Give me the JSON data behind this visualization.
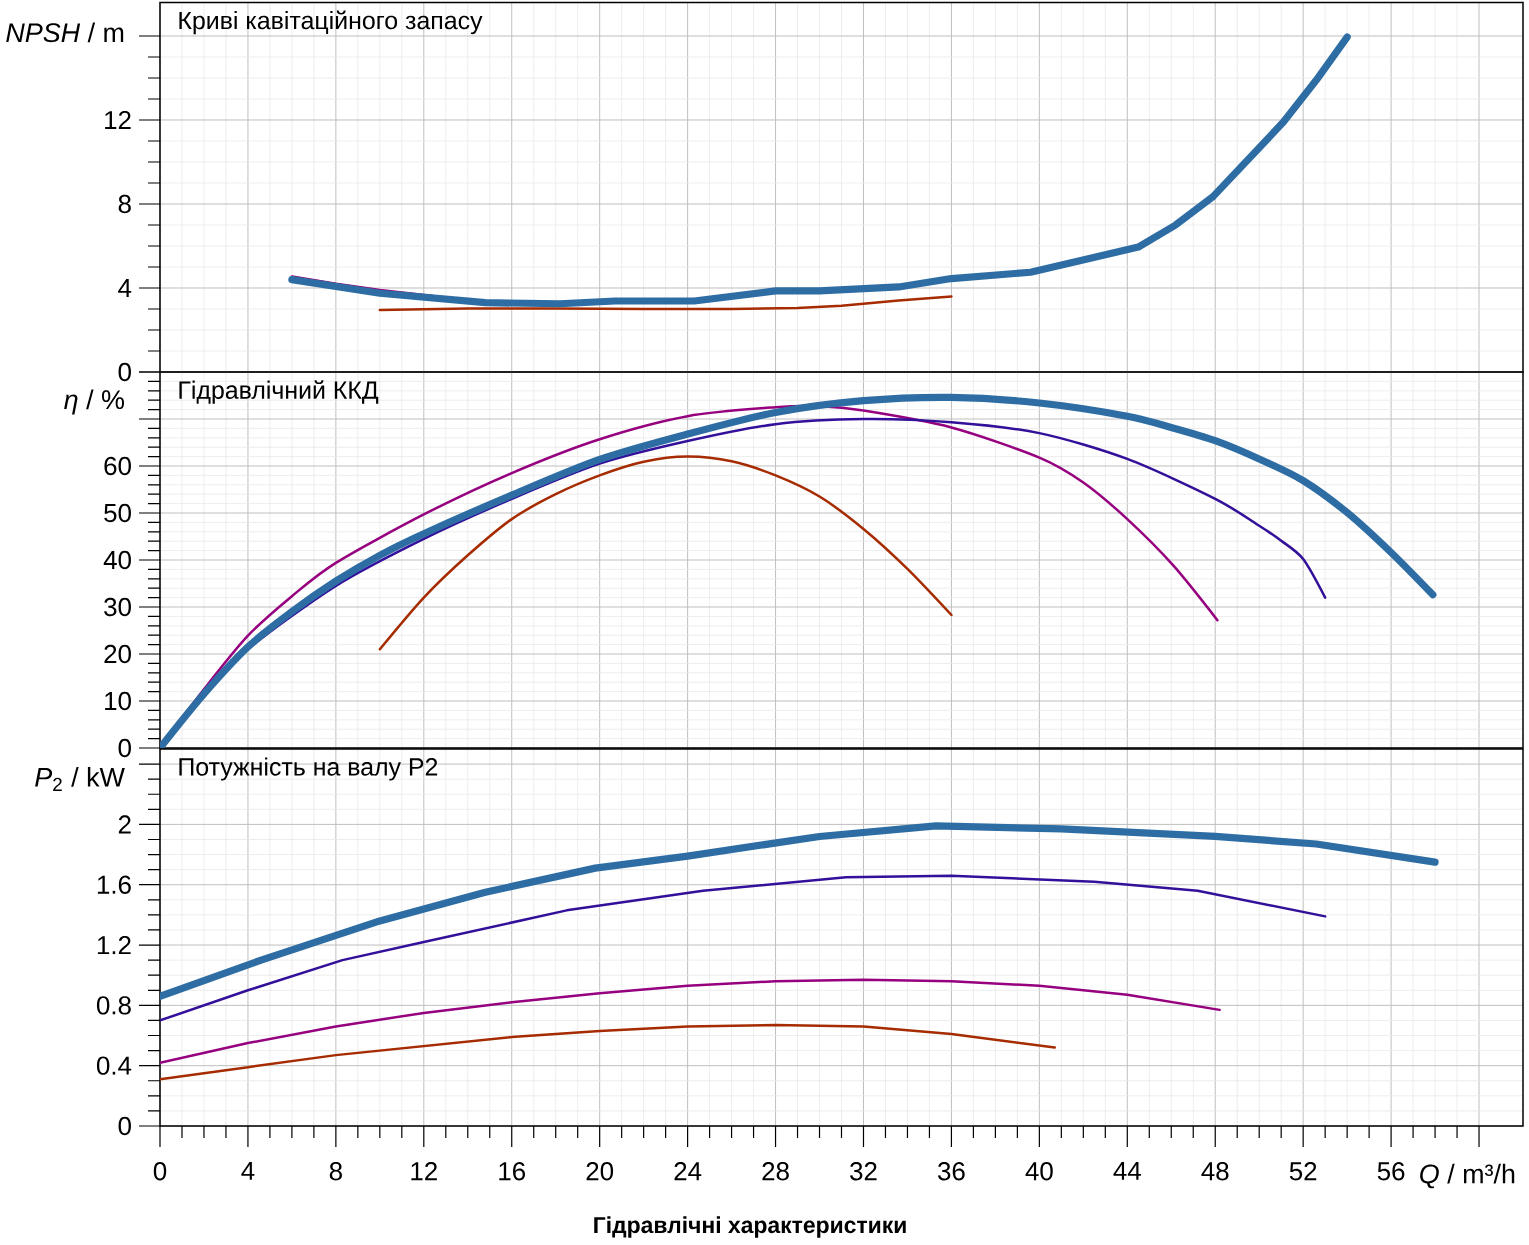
{
  "chart_data": [
    {
      "type": "line",
      "title": "Криві кавітаційного запасу",
      "ylabel": "*NPSH* / m",
      "xlim": [
        0,
        62
      ],
      "xticks": [
        0,
        4,
        8,
        12,
        16,
        20,
        24,
        28,
        32,
        36,
        40,
        44,
        48,
        52,
        56,
        60
      ],
      "ylim": [
        0,
        17.6
      ],
      "yticks": [
        0,
        4,
        8,
        12,
        {
          "value": 16,
          "label": null
        }
      ],
      "grid": true,
      "tick_labels": "y",
      "series": [
        {
          "color": "#a62b00",
          "x": [
            10,
            14,
            18,
            22,
            26,
            29,
            31,
            33.6,
            36
          ],
          "values": [
            2.95,
            3.02,
            3.02,
            3.0,
            3.0,
            3.05,
            3.15,
            3.4,
            3.6
          ]
        },
        {
          "color": "#96007f",
          "x": [
            6,
            8,
            10,
            13
          ],
          "values": [
            4.55,
            4.2,
            3.9,
            3.55
          ]
        },
        {
          "color": "#2e6da4",
          "x": [
            6,
            10,
            14.8,
            18.2,
            20.7,
            24.3,
            28,
            30,
            33.6,
            36,
            39.6,
            44.5,
            46.2,
            47.9,
            51.1,
            52.6,
            54
          ],
          "values": [
            4.4,
            3.75,
            3.3,
            3.25,
            3.38,
            3.38,
            3.86,
            3.86,
            4.05,
            4.45,
            4.75,
            5.95,
            7.0,
            8.35,
            11.9,
            13.9,
            15.95
          ]
        }
      ]
    },
    {
      "type": "line",
      "title": "Гідравлічний ККД",
      "ylabel": "*η* / %",
      "xlim": [
        0,
        62
      ],
      "xticks": [
        0,
        4,
        8,
        12,
        16,
        20,
        24,
        28,
        32,
        36,
        40,
        44,
        48,
        52,
        56,
        60
      ],
      "ylim": [
        0,
        80
      ],
      "yticks": [
        0,
        10,
        20,
        30,
        40,
        50,
        60,
        {
          "value": 70,
          "label": null
        },
        {
          "value": 80,
          "label": null
        }
      ],
      "grid": true,
      "tick_labels": "y",
      "series": [
        {
          "color": "#a62b00",
          "x": [
            10,
            12,
            14,
            16,
            18,
            20,
            22,
            24,
            26,
            28,
            30,
            32,
            34,
            36
          ],
          "values": [
            21,
            32,
            41,
            48.7,
            54,
            58,
            60.9,
            62,
            61,
            58,
            53.5,
            46.6,
            38.1,
            28.3
          ]
        },
        {
          "color": "#96007f",
          "x": [
            0,
            2,
            4,
            6,
            8,
            12,
            16,
            20,
            24,
            28,
            30,
            32,
            36,
            40,
            42,
            44,
            46.1,
            48.1
          ],
          "values": [
            0,
            12.5,
            23.9,
            32.3,
            39.4,
            49.7,
            58.5,
            65.7,
            70.6,
            72.5,
            72.7,
            71.8,
            68.2,
            61.8,
            56.5,
            48.7,
            38.8,
            27.2
          ]
        },
        {
          "color": "#33109a",
          "x": [
            0,
            2,
            4,
            8,
            12,
            16,
            20,
            24,
            28,
            32,
            36,
            40,
            44,
            48,
            50,
            51,
            52,
            53
          ],
          "values": [
            0,
            11,
            21,
            34.5,
            44.5,
            53,
            60.5,
            65.3,
            68.9,
            70,
            69.3,
            67,
            61.5,
            53,
            47.3,
            44.1,
            40.2,
            32
          ]
        },
        {
          "color": "#2e6da4",
          "x": [
            0,
            2,
            4,
            6,
            8,
            10,
            12,
            16,
            20,
            24,
            28,
            32,
            36,
            40,
            44,
            46,
            48,
            50,
            52,
            54,
            56,
            57.9
          ],
          "values": [
            0,
            11.5,
            21.5,
            29,
            35.5,
            41,
            45.6,
            53.8,
            61.4,
            66.8,
            71.4,
            73.9,
            74.6,
            73.4,
            70.6,
            68.2,
            65.4,
            61.5,
            56.9,
            50.1,
            41.6,
            32.6
          ]
        }
      ]
    },
    {
      "type": "line",
      "title": "Потужність на валу P2",
      "xlabel": "*Q* / m³/h",
      "ylabel": "*P*$_{2}$ / kW",
      "xlim": [
        0,
        62
      ],
      "xticks": [
        0,
        4,
        8,
        12,
        16,
        20,
        24,
        28,
        32,
        36,
        40,
        44,
        48,
        52,
        56,
        {
          "value": 60,
          "label": null
        }
      ],
      "ylim": [
        0,
        2.5
      ],
      "yticks": [
        0,
        0.4,
        0.8,
        1.2,
        1.6,
        2,
        {
          "value": 2.4,
          "label": null
        }
      ],
      "grid": true,
      "annotations": [
        "Гідравлічні характеристики"
      ],
      "series": [
        {
          "color": "#a62b00",
          "x": [
            0,
            4,
            8,
            12,
            16,
            20,
            24,
            28,
            32,
            36,
            40.7
          ],
          "values": [
            0.31,
            0.39,
            0.47,
            0.53,
            0.59,
            0.63,
            0.66,
            0.67,
            0.66,
            0.61,
            0.52
          ]
        },
        {
          "color": "#96007f",
          "x": [
            0,
            4,
            8,
            12,
            16,
            20,
            24,
            28,
            32,
            36,
            40,
            44,
            48.2
          ],
          "values": [
            0.42,
            0.55,
            0.66,
            0.75,
            0.82,
            0.88,
            0.93,
            0.96,
            0.97,
            0.96,
            0.93,
            0.87,
            0.77
          ]
        },
        {
          "color": "#33109a",
          "x": [
            0,
            4,
            8.3,
            12,
            18.5,
            24.7,
            31.2,
            36,
            42.5,
            47.2,
            53
          ],
          "values": [
            0.7,
            0.9,
            1.1,
            1.22,
            1.43,
            1.56,
            1.65,
            1.66,
            1.62,
            1.56,
            1.39
          ]
        },
        {
          "color": "#2e6da4",
          "x": [
            0,
            4.6,
            10,
            14.8,
            19.8,
            24,
            30,
            35.3,
            41,
            48,
            52.6,
            58
          ],
          "values": [
            0.86,
            1.1,
            1.36,
            1.55,
            1.71,
            1.79,
            1.92,
            1.99,
            1.97,
            1.92,
            1.87,
            1.75
          ]
        }
      ]
    }
  ]
}
